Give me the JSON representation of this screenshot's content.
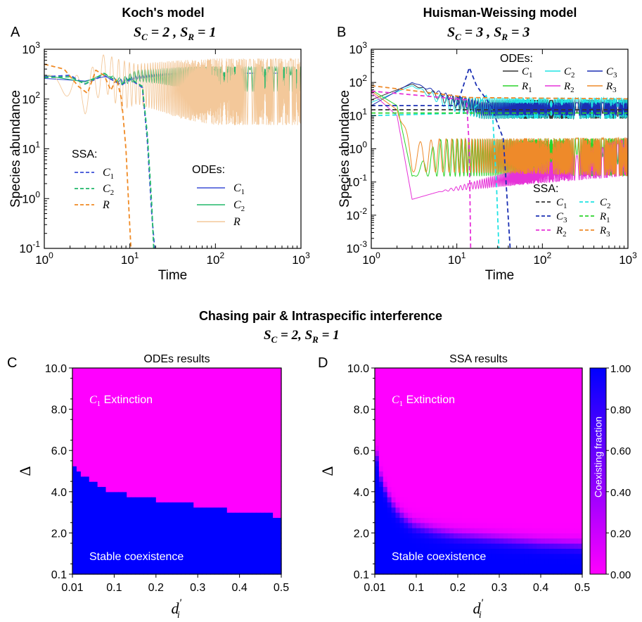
{
  "colors": {
    "C1": "#3b4fd6",
    "C2": "#21b86a",
    "R": "#f3c89a",
    "R_ssa": "#f08a24",
    "hw_C1": "#333333",
    "hw_C2": "#1ee3e3",
    "hw_C3": "#1a2fb3",
    "hw_R1": "#2bd42b",
    "hw_R2": "#e632d8",
    "hw_R3": "#ee8a2a",
    "extinction": "#ff00ff",
    "coexist": "#0000ff"
  },
  "chart_data": [
    {
      "id": "A",
      "panel_label": "A",
      "type": "line",
      "title": "Koch's model",
      "subtitle": "S_C = 2 , S_R = 1",
      "xlabel": "Time",
      "ylabel": "Species abundance",
      "xscale": "log",
      "yscale": "log",
      "xlim": [
        1,
        1000
      ],
      "ylim": [
        0.1,
        1000
      ],
      "xticks": [
        "10^0",
        "10^1",
        "10^2",
        "10^3"
      ],
      "yticks": [
        "10^-1",
        "10^0",
        "10^1",
        "10^2",
        "10^3"
      ],
      "legend_ssa": {
        "title": "SSA:",
        "entries": [
          "C1",
          "C2",
          "R"
        ]
      },
      "legend_odes": {
        "title": "ODEs:",
        "entries": [
          "C1",
          "C2",
          "R"
        ]
      },
      "series": [
        {
          "name": "C1",
          "method": "SSA",
          "style": "dashed",
          "x": [
            1,
            2,
            3,
            5,
            8,
            10,
            14,
            16,
            18,
            19.5
          ],
          "y": [
            280,
            300,
            200,
            300,
            190,
            250,
            170,
            15,
            0.5,
            0.1
          ]
        },
        {
          "name": "C2",
          "method": "SSA",
          "style": "dashed",
          "x": [
            1,
            2,
            3,
            5,
            8,
            10,
            14,
            16,
            18,
            19
          ],
          "y": [
            270,
            280,
            200,
            330,
            200,
            260,
            180,
            20,
            0.8,
            0.1
          ]
        },
        {
          "name": "R",
          "method": "SSA",
          "style": "dashed",
          "x": [
            1,
            1.7,
            2.5,
            3.2,
            4,
            5,
            6,
            7,
            8,
            9,
            9.8,
            10.3
          ],
          "y": [
            500,
            400,
            180,
            130,
            380,
            300,
            150,
            260,
            100,
            10,
            0.5,
            0.1
          ]
        },
        {
          "name": "C1",
          "method": "ODEs",
          "style": "solid",
          "x": [
            1,
            3,
            5,
            8,
            12,
            20,
            40,
            100,
            1000
          ],
          "y_center": [
            260,
            230,
            280,
            220,
            280,
            300,
            320,
            330,
            330
          ],
          "y_low": [
            260,
            230,
            280,
            200,
            250,
            280,
            320,
            330,
            330
          ],
          "y_high": [
            260,
            230,
            280,
            250,
            300,
            320,
            330,
            330,
            330
          ]
        },
        {
          "name": "C2",
          "method": "ODEs",
          "style": "solid",
          "x": [
            1,
            3,
            5,
            8,
            12,
            20,
            40,
            100,
            1000
          ],
          "y_center": [
            300,
            220,
            320,
            220,
            300,
            300,
            280,
            250,
            250
          ],
          "y_low": [
            300,
            220,
            320,
            190,
            230,
            210,
            170,
            140,
            140
          ],
          "y_high": [
            300,
            220,
            320,
            260,
            380,
            400,
            440,
            450,
            450
          ]
        },
        {
          "name": "R",
          "method": "ODEs",
          "style": "solid",
          "x": [
            1,
            3,
            5,
            8,
            12,
            20,
            40,
            100,
            1000
          ],
          "y_center": [
            300,
            100,
            300,
            120,
            200,
            200,
            180,
            150,
            150
          ],
          "y_low": [
            300,
            50,
            150,
            60,
            80,
            60,
            40,
            30,
            30
          ],
          "y_high": [
            300,
            300,
            800,
            600,
            500,
            550,
            600,
            650,
            650
          ]
        }
      ]
    },
    {
      "id": "B",
      "panel_label": "B",
      "type": "line",
      "title": "Huisman-Weissing model",
      "subtitle": "S_C = 3 , S_R = 3",
      "xlabel": "Time",
      "ylabel": "Species abundance",
      "xscale": "log",
      "yscale": "log",
      "xlim": [
        1,
        1000
      ],
      "ylim": [
        0.001,
        1000
      ],
      "xticks": [
        "10^0",
        "10^1",
        "10^2",
        "10^3"
      ],
      "yticks": [
        "10^-3",
        "10^-2",
        "10^-1",
        "10^0",
        "10^1",
        "10^2",
        "10^3"
      ],
      "legend_odes": {
        "title": "ODEs:",
        "entries": [
          "C1",
          "C2",
          "C3",
          "R1",
          "R2",
          "R3"
        ]
      },
      "legend_ssa": {
        "title": "SSA:",
        "entries": [
          "C1",
          "C2",
          "C3",
          "R1",
          "R2",
          "R3"
        ]
      },
      "series": [
        {
          "name": "C1",
          "method": "ODEs",
          "x": [
            1,
            3,
            8,
            20,
            1000
          ],
          "y_low": [
            30,
            90,
            20,
            8,
            8
          ],
          "y_high": [
            30,
            90,
            40,
            30,
            30
          ]
        },
        {
          "name": "C2",
          "method": "ODEs",
          "x": [
            1,
            3,
            8,
            20,
            1000
          ],
          "y_low": [
            25,
            80,
            15,
            8,
            8
          ],
          "y_high": [
            25,
            80,
            35,
            35,
            35
          ]
        },
        {
          "name": "C3",
          "method": "ODEs",
          "x": [
            1,
            3,
            8,
            20,
            1000
          ],
          "y_low": [
            20,
            100,
            30,
            10,
            10
          ],
          "y_high": [
            20,
            100,
            45,
            25,
            25
          ]
        },
        {
          "name": "R1",
          "method": "ODEs",
          "x": [
            1,
            2,
            3,
            6,
            1000
          ],
          "y_low": [
            60,
            20,
            0.15,
            0.15,
            0.15
          ],
          "y_high": [
            60,
            20,
            0.15,
            1.9,
            2.1
          ]
        },
        {
          "name": "R2",
          "method": "ODEs",
          "x": [
            1,
            2,
            3,
            6,
            1000
          ],
          "y_low": [
            50,
            10,
            0.03,
            0.05,
            0.15
          ],
          "y_high": [
            50,
            10,
            0.03,
            0.05,
            2.2
          ]
        },
        {
          "name": "R3",
          "method": "ODEs",
          "x": [
            1,
            2,
            3,
            6,
            1000
          ],
          "y_low": [
            55,
            15,
            0.2,
            0.2,
            0.15
          ],
          "y_high": [
            55,
            15,
            1.5,
            2.0,
            2.2
          ]
        },
        {
          "name": "C1",
          "method": "SSA",
          "x": [
            1,
            14,
            1000
          ],
          "y": [
            15,
            15,
            15
          ]
        },
        {
          "name": "C2",
          "method": "SSA",
          "x": [
            1,
            14,
            22,
            26,
            29,
            31
          ],
          "y": [
            10,
            12,
            40,
            15,
            0.1,
            0.001
          ]
        },
        {
          "name": "C3",
          "method": "SSA",
          "x": [
            1,
            10,
            14,
            17,
            25,
            35,
            42
          ],
          "y": [
            20,
            20,
            280,
            80,
            20,
            2,
            0.001
          ]
        },
        {
          "name": "R1",
          "method": "SSA",
          "x": [
            1,
            14,
            1000
          ],
          "y": [
            12,
            12,
            12
          ]
        },
        {
          "name": "R2",
          "method": "SSA",
          "x": [
            1,
            13,
            14,
            14.5
          ],
          "y": [
            55,
            30,
            1,
            0.001
          ]
        },
        {
          "name": "R3",
          "method": "SSA",
          "x": [
            1,
            14,
            1000
          ],
          "y": [
            80,
            35,
            32
          ]
        }
      ]
    },
    {
      "id": "C",
      "panel_label": "C",
      "type": "heatmap",
      "title": "ODEs results",
      "xlabel": "d_i'",
      "ylabel": "Δ",
      "xticks": [
        "0.01",
        "0.1",
        "0.2",
        "0.3",
        "0.4",
        "0.5"
      ],
      "yticks": [
        "0.1",
        "2.0",
        "4.0",
        "6.0",
        "8.0",
        "10.0"
      ],
      "xlim": [
        0.01,
        0.5
      ],
      "ylim": [
        0.1,
        10.0
      ],
      "region_labels": {
        "upper": "C1 Extinction",
        "lower": "Stable coexistence"
      },
      "boundary": {
        "x": [
          0.01,
          0.02,
          0.04,
          0.06,
          0.08,
          0.1,
          0.15,
          0.2,
          0.25,
          0.3,
          0.35,
          0.4,
          0.45,
          0.5
        ],
        "y": [
          5.5,
          5.0,
          4.8,
          4.5,
          4.3,
          4.1,
          3.9,
          3.7,
          3.6,
          3.4,
          3.3,
          3.1,
          3.0,
          2.9
        ]
      }
    },
    {
      "id": "D",
      "panel_label": "D",
      "type": "heatmap",
      "title": "SSA results",
      "xlabel": "d_i'",
      "ylabel": "Δ",
      "xticks": [
        "0.01",
        "0.1",
        "0.2",
        "0.3",
        "0.4",
        "0.5"
      ],
      "yticks": [
        "0.1",
        "2.0",
        "4.0",
        "6.0",
        "8.0",
        "10.0"
      ],
      "xlim": [
        0.01,
        0.5
      ],
      "ylim": [
        0.1,
        10.0
      ],
      "region_labels": {
        "upper": "C1 Extinction",
        "lower": "Stable coexistence"
      },
      "colorbar": {
        "label": "Coexisting fraction",
        "ticks": [
          "0.00",
          "0.20",
          "0.40",
          "0.60",
          "0.80",
          "1.00"
        ],
        "range": [
          0,
          1
        ]
      },
      "boundary": {
        "x": [
          0.01,
          0.02,
          0.04,
          0.06,
          0.08,
          0.1,
          0.15,
          0.2,
          0.25,
          0.3,
          0.35,
          0.4,
          0.45,
          0.5
        ],
        "y": [
          6.5,
          5.0,
          3.9,
          3.2,
          2.8,
          2.5,
          2.2,
          2.0,
          1.9,
          1.8,
          1.7,
          1.6,
          1.55,
          1.5
        ]
      }
    }
  ],
  "section_bottom": {
    "title": "Chasing pair & Intraspecific interference",
    "subtitle": "S_C = 2,  S_R = 1"
  }
}
